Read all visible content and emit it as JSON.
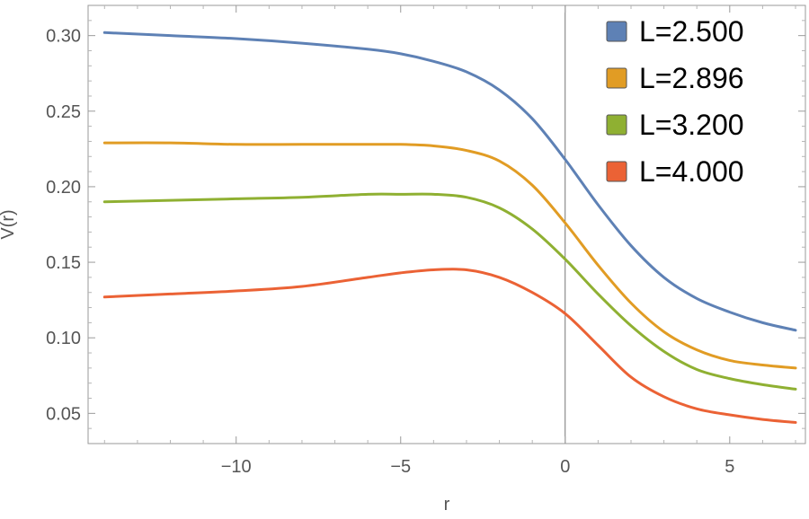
{
  "chart_data": {
    "type": "line",
    "xlabel": "r",
    "ylabel": "V(r)",
    "xlim": [
      -14.5,
      7.3
    ],
    "ylim": [
      0.03,
      0.32
    ],
    "x_ticks": [
      -10,
      -5,
      0,
      5
    ],
    "x_tick_labels": [
      "−10",
      "−5",
      "0",
      "5"
    ],
    "y_ticks": [
      0.05,
      0.1,
      0.15,
      0.2,
      0.25,
      0.3
    ],
    "y_tick_labels": [
      "0.05",
      "0.10",
      "0.15",
      "0.20",
      "0.25",
      "0.30"
    ],
    "legend_position": "top-right",
    "grid": false,
    "series": [
      {
        "name": "L=2.500",
        "color": "#5e81b5",
        "x": [
          -14,
          -12,
          -10,
          -8,
          -6,
          -5,
          -4,
          -3,
          -2,
          -1,
          0,
          1,
          2,
          3,
          4,
          5,
          6,
          7
        ],
        "y": [
          0.302,
          0.3,
          0.298,
          0.295,
          0.291,
          0.288,
          0.283,
          0.276,
          0.264,
          0.245,
          0.218,
          0.188,
          0.161,
          0.14,
          0.126,
          0.117,
          0.11,
          0.105
        ]
      },
      {
        "name": "L=2.896",
        "color": "#e19c24",
        "x": [
          -14,
          -12,
          -10,
          -8,
          -6,
          -5,
          -4,
          -3,
          -2,
          -1,
          0,
          1,
          2,
          3,
          4,
          5,
          6,
          7
        ],
        "y": [
          0.229,
          0.229,
          0.228,
          0.228,
          0.228,
          0.228,
          0.227,
          0.224,
          0.217,
          0.201,
          0.176,
          0.148,
          0.123,
          0.104,
          0.092,
          0.085,
          0.082,
          0.08
        ]
      },
      {
        "name": "L=3.200",
        "color": "#8fb032",
        "x": [
          -14,
          -12,
          -10,
          -8,
          -6,
          -5,
          -4,
          -3,
          -2,
          -1,
          0,
          1,
          2,
          3,
          4,
          5,
          6,
          7
        ],
        "y": [
          0.19,
          0.191,
          0.192,
          0.193,
          0.195,
          0.195,
          0.195,
          0.193,
          0.186,
          0.172,
          0.152,
          0.129,
          0.108,
          0.091,
          0.079,
          0.073,
          0.069,
          0.066
        ]
      },
      {
        "name": "L=4.000",
        "color": "#eb6235",
        "x": [
          -14,
          -12,
          -10,
          -8,
          -6,
          -5,
          -4,
          -3,
          -2,
          -1,
          0,
          1,
          2,
          3,
          4,
          5,
          6,
          7
        ],
        "y": [
          0.127,
          0.129,
          0.131,
          0.134,
          0.14,
          0.143,
          0.145,
          0.145,
          0.14,
          0.13,
          0.116,
          0.095,
          0.074,
          0.061,
          0.053,
          0.049,
          0.046,
          0.044
        ]
      }
    ]
  }
}
